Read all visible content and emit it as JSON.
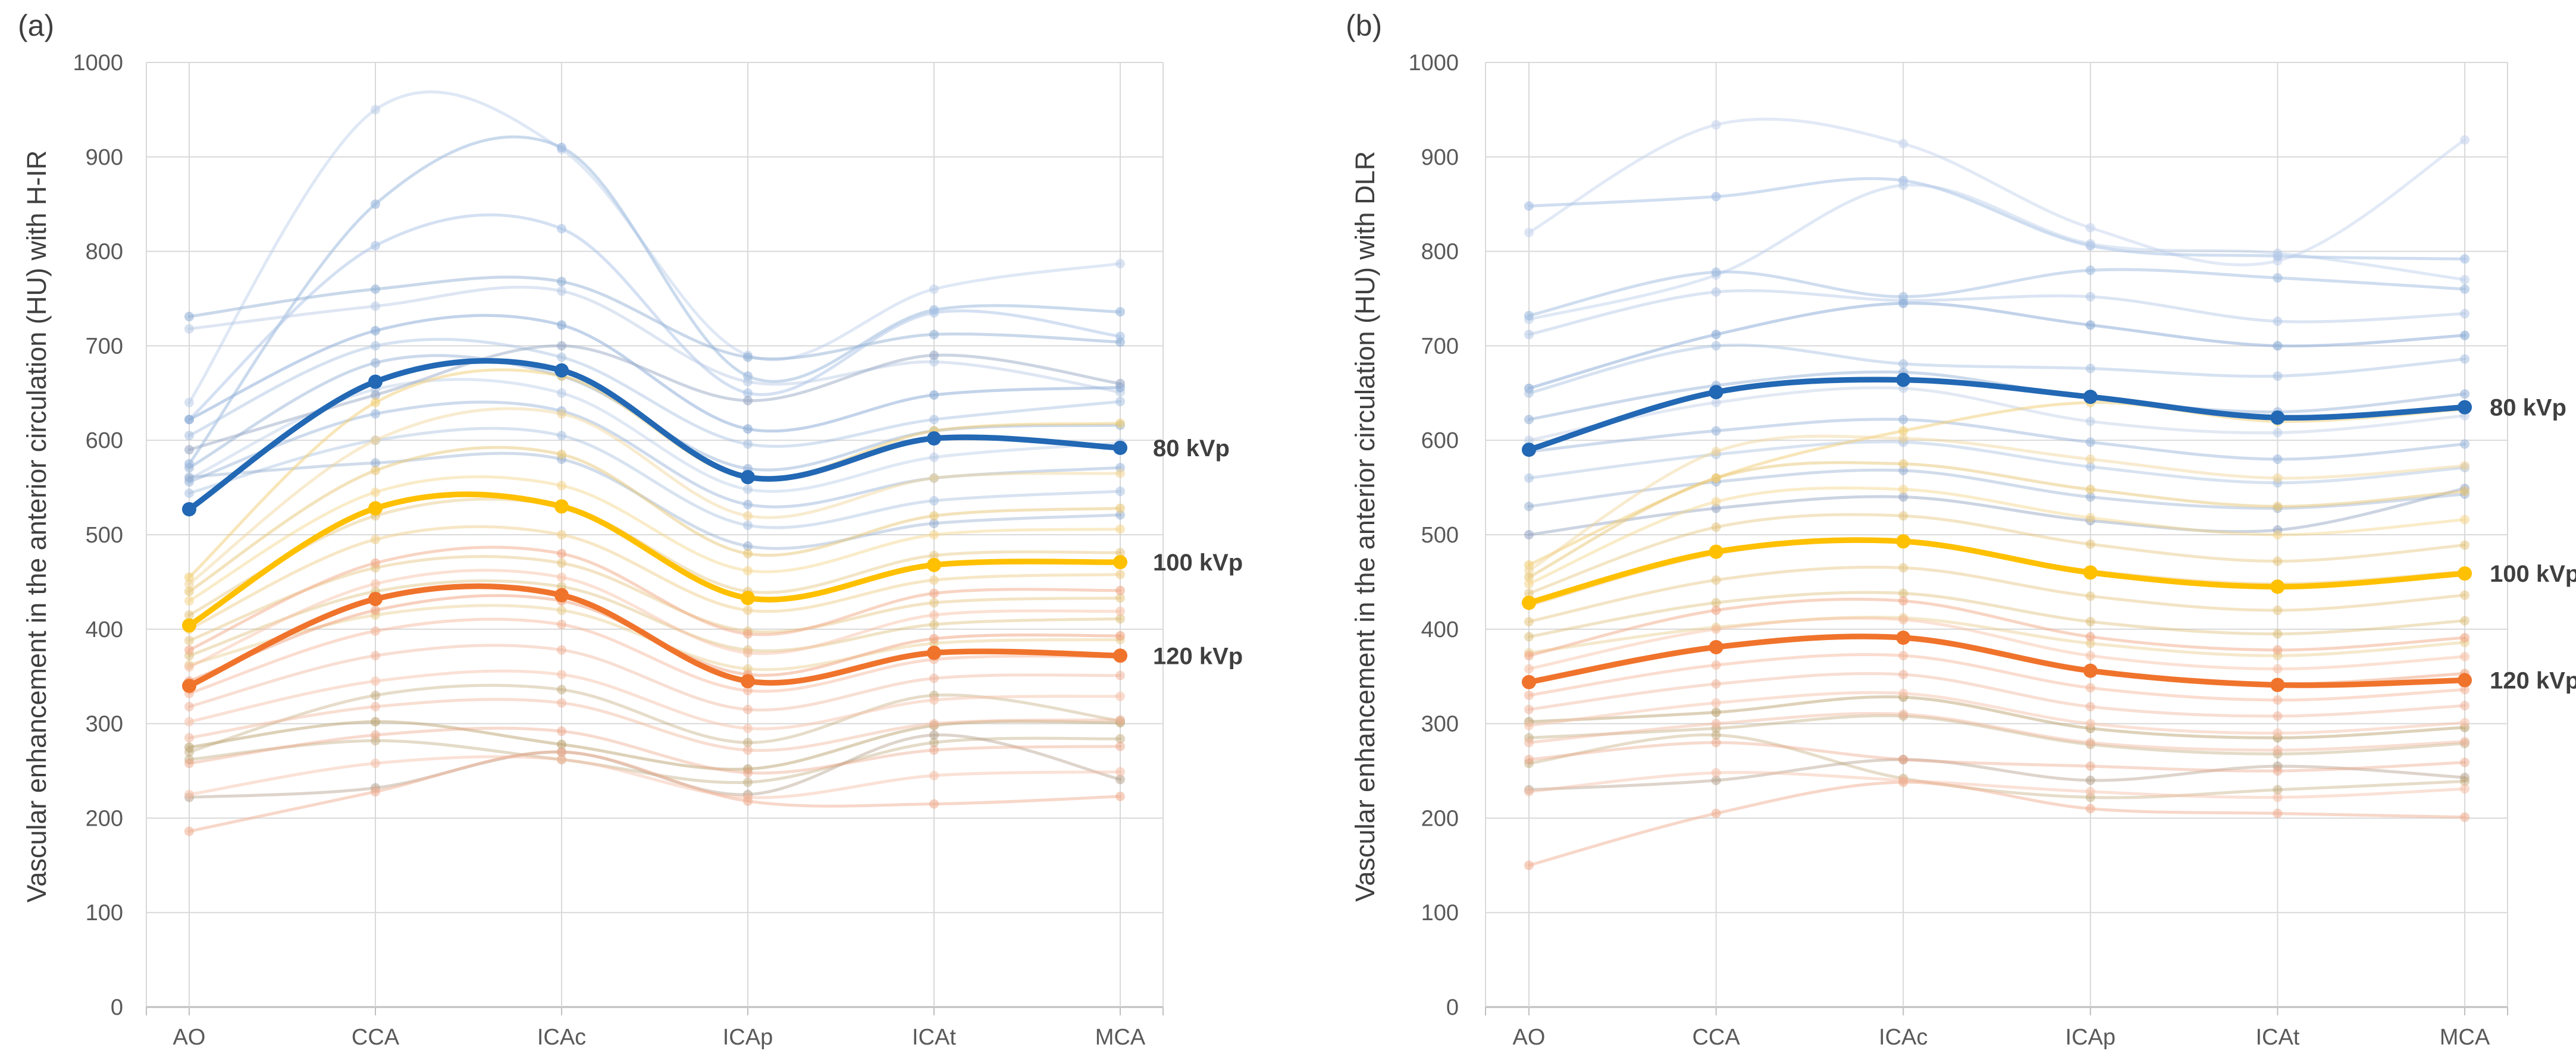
{
  "panels": [
    {
      "tag": "(a)"
    },
    {
      "tag": "(b)"
    }
  ],
  "chart_data": [
    {
      "type": "line",
      "panel": "(a)",
      "ylabel": "Vascular enhancement in the anterior circulation (HU) with H-IR",
      "categories": [
        "AO",
        "CCA",
        "ICAc",
        "ICAp",
        "ICAt",
        "MCA"
      ],
      "ylim": [
        0,
        1000
      ],
      "yticks": [
        0,
        100,
        200,
        300,
        400,
        500,
        600,
        700,
        800,
        900,
        1000
      ],
      "grid": true,
      "legend_position": "right-of-last-point",
      "series": [
        {
          "name": "80 kVp",
          "color": "#2268B4",
          "values": [
            527,
            662,
            674,
            561,
            602,
            592
          ]
        },
        {
          "name": "100 kVp",
          "color": "#FFC000",
          "values": [
            404,
            528,
            530,
            433,
            468,
            471
          ]
        },
        {
          "name": "120 kVp",
          "color": "#F0732C",
          "values": [
            340,
            432,
            436,
            345,
            375,
            372
          ]
        }
      ],
      "individual_series": [
        {
          "color": "#B9CCE9",
          "opacity": 0.45,
          "values": [
            640,
            950,
            908,
            690,
            760,
            787
          ]
        },
        {
          "color": "#9FBBDF",
          "opacity": 0.55,
          "values": [
            575,
            850,
            910,
            668,
            738,
            736
          ]
        },
        {
          "color": "#A9C2E5",
          "opacity": 0.5,
          "values": [
            622,
            806,
            824,
            650,
            735,
            710
          ]
        },
        {
          "color": "#93B1D6",
          "opacity": 0.5,
          "values": [
            731,
            760,
            768,
            688,
            712,
            704
          ]
        },
        {
          "color": "#B6C8E4",
          "opacity": 0.45,
          "values": [
            718,
            742,
            758,
            662,
            683,
            651
          ]
        },
        {
          "color": "#8FAFD8",
          "opacity": 0.55,
          "values": [
            622,
            716,
            722,
            612,
            648,
            656
          ]
        },
        {
          "color": "#A5BEDF",
          "opacity": 0.45,
          "values": [
            605,
            700,
            688,
            596,
            622,
            641
          ]
        },
        {
          "color": "#97B3D8",
          "opacity": 0.5,
          "values": [
            571,
            682,
            668,
            570,
            610,
            616
          ]
        },
        {
          "color": "#B0C5E4",
          "opacity": 0.4,
          "values": [
            559,
            654,
            650,
            548,
            582,
            597
          ]
        },
        {
          "color": "#9DB8DC",
          "opacity": 0.5,
          "values": [
            556,
            628,
            631,
            532,
            560,
            571
          ]
        },
        {
          "color": "#A9C0E0",
          "opacity": 0.45,
          "values": [
            544,
            600,
            605,
            510,
            536,
            546
          ]
        },
        {
          "color": "#8CA8CC",
          "opacity": 0.4,
          "values": [
            561,
            576,
            580,
            488,
            512,
            521
          ]
        },
        {
          "color": "#9AA9C6",
          "opacity": 0.5,
          "values": [
            590,
            648,
            700,
            642,
            690,
            660
          ]
        },
        {
          "color": "#F2CE74",
          "opacity": 0.5,
          "values": [
            455,
            640,
            668,
            560,
            610,
            618
          ]
        },
        {
          "color": "#EFD294",
          "opacity": 0.45,
          "values": [
            448,
            600,
            628,
            520,
            560,
            565
          ]
        },
        {
          "color": "#E8C878",
          "opacity": 0.5,
          "values": [
            440,
            568,
            585,
            480,
            520,
            528
          ]
        },
        {
          "color": "#F4D488",
          "opacity": 0.45,
          "values": [
            430,
            545,
            552,
            462,
            500,
            506
          ]
        },
        {
          "color": "#E2BE6E",
          "opacity": 0.4,
          "values": [
            415,
            520,
            530,
            440,
            478,
            481
          ]
        },
        {
          "color": "#EFCF8E",
          "opacity": 0.5,
          "values": [
            400,
            495,
            500,
            420,
            452,
            458
          ]
        },
        {
          "color": "#E5C47E",
          "opacity": 0.45,
          "values": [
            388,
            465,
            470,
            398,
            428,
            433
          ]
        },
        {
          "color": "#D9B96F",
          "opacity": 0.4,
          "values": [
            372,
            440,
            445,
            378,
            405,
            411
          ]
        },
        {
          "color": "#E8CC8C",
          "opacity": 0.45,
          "values": [
            362,
            415,
            420,
            358,
            385,
            389
          ]
        },
        {
          "color": "#BCA371",
          "opacity": 0.5,
          "values": [
            275,
            302,
            278,
            252,
            298,
            301
          ]
        },
        {
          "color": "#C4AF86",
          "opacity": 0.45,
          "values": [
            262,
            282,
            262,
            238,
            280,
            284
          ]
        },
        {
          "color": "#B3A08C",
          "opacity": 0.45,
          "values": [
            222,
            232,
            270,
            225,
            288,
            241
          ]
        },
        {
          "color": "#C0A878",
          "opacity": 0.4,
          "values": [
            270,
            330,
            336,
            280,
            330,
            303
          ]
        },
        {
          "color": "#F2A988",
          "opacity": 0.5,
          "values": [
            378,
            470,
            480,
            395,
            438,
            441
          ]
        },
        {
          "color": "#F6BCA0",
          "opacity": 0.45,
          "values": [
            360,
            448,
            455,
            375,
            415,
            419
          ]
        },
        {
          "color": "#EFA27E",
          "opacity": 0.5,
          "values": [
            345,
            420,
            430,
            352,
            390,
            393
          ]
        },
        {
          "color": "#F4B294",
          "opacity": 0.45,
          "values": [
            332,
            398,
            405,
            335,
            368,
            371
          ]
        },
        {
          "color": "#EEAC90",
          "opacity": 0.4,
          "values": [
            318,
            372,
            378,
            315,
            348,
            351
          ]
        },
        {
          "color": "#F6C3AC",
          "opacity": 0.5,
          "values": [
            302,
            345,
            352,
            295,
            325,
            329
          ]
        },
        {
          "color": "#F0B59C",
          "opacity": 0.45,
          "values": [
            285,
            318,
            322,
            272,
            300,
            304
          ]
        },
        {
          "color": "#EAA285",
          "opacity": 0.4,
          "values": [
            258,
            288,
            292,
            248,
            272,
            276
          ]
        },
        {
          "color": "#F4BCA4",
          "opacity": 0.45,
          "values": [
            225,
            258,
            262,
            222,
            245,
            249
          ]
        },
        {
          "color": "#EFB094",
          "opacity": 0.5,
          "values": [
            186,
            228,
            270,
            218,
            215,
            223
          ]
        }
      ]
    },
    {
      "type": "line",
      "panel": "(b)",
      "ylabel": "Vascular enhancement in the anterior circulation (HU) with DLR",
      "categories": [
        "AO",
        "CCA",
        "ICAc",
        "ICAp",
        "ICAt",
        "MCA"
      ],
      "ylim": [
        0,
        1000
      ],
      "yticks": [
        0,
        100,
        200,
        300,
        400,
        500,
        600,
        700,
        800,
        900,
        1000
      ],
      "grid": true,
      "legend_position": "right-of-last-point",
      "series": [
        {
          "name": "80 kVp",
          "color": "#2268B4",
          "values": [
            590,
            651,
            664,
            646,
            624,
            635
          ]
        },
        {
          "name": "100 kVp",
          "color": "#FFC000",
          "values": [
            428,
            482,
            493,
            460,
            445,
            459
          ]
        },
        {
          "name": "120 kVp",
          "color": "#F0732C",
          "values": [
            344,
            381,
            391,
            356,
            341,
            346
          ]
        }
      ],
      "individual_series": [
        {
          "color": "#C6D4EE",
          "opacity": 0.5,
          "values": [
            820,
            934,
            914,
            825,
            790,
            918
          ]
        },
        {
          "color": "#A9C2E5",
          "opacity": 0.55,
          "values": [
            848,
            858,
            875,
            806,
            795,
            792
          ]
        },
        {
          "color": "#B9CCE9",
          "opacity": 0.45,
          "values": [
            728,
            775,
            870,
            808,
            798,
            770
          ]
        },
        {
          "color": "#9FBBDF",
          "opacity": 0.5,
          "values": [
            732,
            778,
            752,
            780,
            772,
            760
          ]
        },
        {
          "color": "#B0C5E4",
          "opacity": 0.45,
          "values": [
            712,
            757,
            748,
            752,
            726,
            734
          ]
        },
        {
          "color": "#8FAFD8",
          "opacity": 0.55,
          "values": [
            655,
            712,
            745,
            722,
            700,
            711
          ]
        },
        {
          "color": "#A5BEDF",
          "opacity": 0.45,
          "values": [
            650,
            700,
            681,
            676,
            668,
            686
          ]
        },
        {
          "color": "#97B3D8",
          "opacity": 0.5,
          "values": [
            622,
            658,
            672,
            645,
            630,
            649
          ]
        },
        {
          "color": "#B6C8E4",
          "opacity": 0.4,
          "values": [
            600,
            640,
            655,
            620,
            608,
            626
          ]
        },
        {
          "color": "#9DB8DC",
          "opacity": 0.5,
          "values": [
            588,
            610,
            622,
            598,
            580,
            596
          ]
        },
        {
          "color": "#A9C0E0",
          "opacity": 0.45,
          "values": [
            560,
            585,
            598,
            572,
            555,
            571
          ]
        },
        {
          "color": "#8CA8CC",
          "opacity": 0.4,
          "values": [
            530,
            556,
            568,
            540,
            528,
            543
          ]
        },
        {
          "color": "#9AA9C6",
          "opacity": 0.5,
          "values": [
            500,
            528,
            540,
            515,
            505,
            549
          ]
        },
        {
          "color": "#F2CE74",
          "opacity": 0.5,
          "values": [
            468,
            560,
            610,
            640,
            620,
            633
          ]
        },
        {
          "color": "#EFD294",
          "opacity": 0.45,
          "values": [
            462,
            588,
            602,
            580,
            560,
            573
          ]
        },
        {
          "color": "#E8C878",
          "opacity": 0.5,
          "values": [
            455,
            560,
            575,
            548,
            530,
            546
          ]
        },
        {
          "color": "#F4D488",
          "opacity": 0.45,
          "values": [
            448,
            535,
            548,
            518,
            500,
            516
          ]
        },
        {
          "color": "#E2BE6E",
          "opacity": 0.4,
          "values": [
            438,
            508,
            520,
            490,
            472,
            489
          ]
        },
        {
          "color": "#EFCF8E",
          "opacity": 0.5,
          "values": [
            425,
            480,
            492,
            462,
            448,
            461
          ]
        },
        {
          "color": "#E5C47E",
          "opacity": 0.45,
          "values": [
            408,
            452,
            465,
            435,
            420,
            436
          ]
        },
        {
          "color": "#D9B96F",
          "opacity": 0.4,
          "values": [
            392,
            428,
            438,
            408,
            395,
            409
          ]
        },
        {
          "color": "#E8CC8C",
          "opacity": 0.45,
          "values": [
            375,
            402,
            412,
            385,
            372,
            386
          ]
        },
        {
          "color": "#BCA371",
          "opacity": 0.5,
          "values": [
            302,
            312,
            328,
            295,
            285,
            296
          ]
        },
        {
          "color": "#C4AF86",
          "opacity": 0.45,
          "values": [
            285,
            295,
            308,
            278,
            268,
            279
          ]
        },
        {
          "color": "#B3A08C",
          "opacity": 0.45,
          "values": [
            230,
            240,
            262,
            240,
            255,
            243
          ]
        },
        {
          "color": "#C0A878",
          "opacity": 0.4,
          "values": [
            258,
            288,
            242,
            222,
            230,
            239
          ]
        },
        {
          "color": "#F2A988",
          "opacity": 0.5,
          "values": [
            372,
            420,
            430,
            392,
            378,
            391
          ]
        },
        {
          "color": "#F6BCA0",
          "opacity": 0.45,
          "values": [
            358,
            400,
            410,
            372,
            358,
            371
          ]
        },
        {
          "color": "#EFA27E",
          "opacity": 0.5,
          "values": [
            345,
            382,
            392,
            355,
            342,
            353
          ]
        },
        {
          "color": "#F4B294",
          "opacity": 0.45,
          "values": [
            330,
            362,
            372,
            338,
            325,
            336
          ]
        },
        {
          "color": "#EEAC90",
          "opacity": 0.4,
          "values": [
            315,
            342,
            352,
            318,
            308,
            319
          ]
        },
        {
          "color": "#F6C3AC",
          "opacity": 0.5,
          "values": [
            298,
            322,
            332,
            300,
            290,
            301
          ]
        },
        {
          "color": "#F0B59C",
          "opacity": 0.45,
          "values": [
            280,
            300,
            310,
            280,
            272,
            281
          ]
        },
        {
          "color": "#EAA285",
          "opacity": 0.4,
          "values": [
            262,
            280,
            262,
            255,
            250,
            259
          ]
        },
        {
          "color": "#F4BCA4",
          "opacity": 0.45,
          "values": [
            228,
            248,
            240,
            228,
            222,
            231
          ]
        },
        {
          "color": "#EFB094",
          "opacity": 0.5,
          "values": [
            150,
            205,
            238,
            210,
            205,
            201
          ]
        }
      ]
    }
  ],
  "style_colors": {
    "gridline": "#D9D9D9",
    "axis_line": "#BFBFBF",
    "tick_text": "#595959",
    "label_text": "#3F3F3F"
  }
}
